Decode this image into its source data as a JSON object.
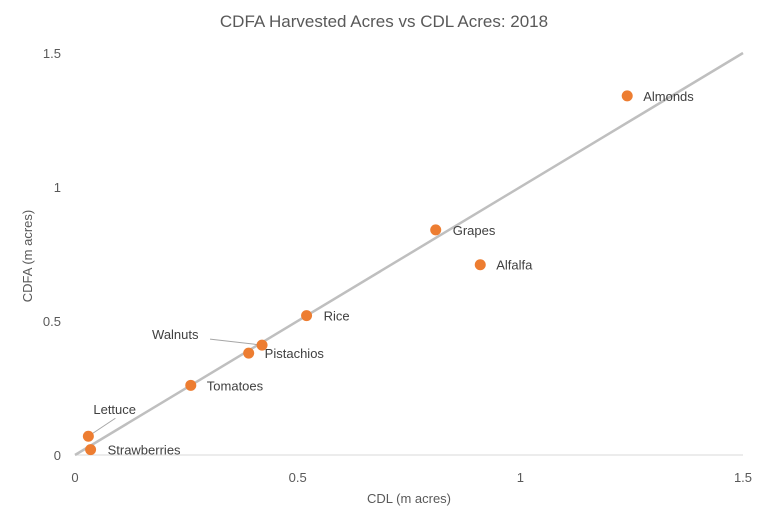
{
  "chart_data": {
    "type": "scatter",
    "title": "CDFA Harvested Acres vs CDL Acres: 2018",
    "xlabel": "CDL (m acres)",
    "ylabel": "CDFA (m acres)",
    "xlim": [
      0,
      1.5
    ],
    "ylim": [
      0,
      1.5
    ],
    "xticks": [
      "0",
      "0.5",
      "1",
      "1.5"
    ],
    "yticks": [
      "0",
      "0.5",
      "1",
      "1.5"
    ],
    "grid": false,
    "legend": "none",
    "point_color": "#ED7D31",
    "reference_line": {
      "from": [
        0,
        0
      ],
      "to": [
        1.5,
        1.5
      ],
      "color": "#BFBFBF"
    },
    "points": [
      {
        "label": "Almonds",
        "x": 1.24,
        "y": 1.34
      },
      {
        "label": "Grapes",
        "x": 0.81,
        "y": 0.84
      },
      {
        "label": "Alfalfa",
        "x": 0.91,
        "y": 0.71
      },
      {
        "label": "Rice",
        "x": 0.52,
        "y": 0.52
      },
      {
        "label": "Walnuts",
        "x": 0.42,
        "y": 0.41
      },
      {
        "label": "Pistachios",
        "x": 0.39,
        "y": 0.38
      },
      {
        "label": "Tomatoes",
        "x": 0.26,
        "y": 0.26
      },
      {
        "label": "Lettuce",
        "x": 0.03,
        "y": 0.07
      },
      {
        "label": "Strawberries",
        "x": 0.035,
        "y": 0.02
      }
    ]
  }
}
